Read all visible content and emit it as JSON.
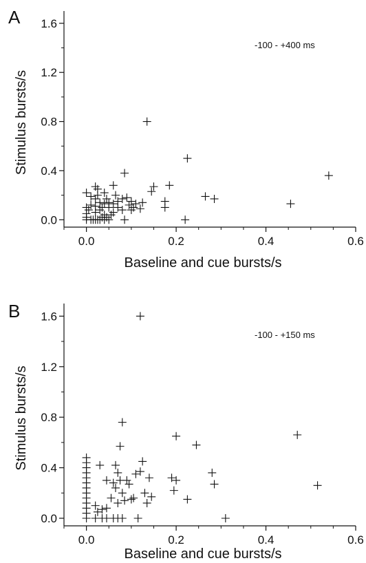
{
  "chart_data": [
    {
      "type": "scatter",
      "panel_label": "A",
      "annotation": "-100 - +400 ms",
      "xlabel": "Baseline and cue bursts/s",
      "ylabel": "Stimulus bursts/s",
      "xlim": [
        -0.05,
        0.6
      ],
      "ylim": [
        -0.06,
        1.7
      ],
      "x_ticks": [
        "0.0",
        "0.2",
        "0.4",
        "0.6"
      ],
      "y_ticks": [
        "0.0",
        "0.4",
        "0.8",
        "1.2",
        "1.6"
      ],
      "grid": false,
      "marker": "plus",
      "points": [
        {
          "x": 0.0,
          "y": 0.0
        },
        {
          "x": 0.0,
          "y": 0.02
        },
        {
          "x": 0.0,
          "y": 0.05
        },
        {
          "x": 0.0,
          "y": 0.1
        },
        {
          "x": 0.0,
          "y": 0.22
        },
        {
          "x": 0.005,
          "y": 0.08
        },
        {
          "x": 0.01,
          "y": 0.0
        },
        {
          "x": 0.01,
          "y": 0.12
        },
        {
          "x": 0.01,
          "y": 0.19
        },
        {
          "x": 0.015,
          "y": 0.0
        },
        {
          "x": 0.02,
          "y": 0.0
        },
        {
          "x": 0.02,
          "y": 0.06
        },
        {
          "x": 0.02,
          "y": 0.11
        },
        {
          "x": 0.02,
          "y": 0.17
        },
        {
          "x": 0.02,
          "y": 0.27
        },
        {
          "x": 0.025,
          "y": 0.0
        },
        {
          "x": 0.025,
          "y": 0.2
        },
        {
          "x": 0.025,
          "y": 0.25
        },
        {
          "x": 0.03,
          "y": 0.0
        },
        {
          "x": 0.03,
          "y": 0.08
        },
        {
          "x": 0.03,
          "y": 0.14
        },
        {
          "x": 0.035,
          "y": 0.02
        },
        {
          "x": 0.035,
          "y": 0.1
        },
        {
          "x": 0.04,
          "y": 0.0
        },
        {
          "x": 0.04,
          "y": 0.04
        },
        {
          "x": 0.04,
          "y": 0.13
        },
        {
          "x": 0.04,
          "y": 0.22
        },
        {
          "x": 0.045,
          "y": 0.02
        },
        {
          "x": 0.045,
          "y": 0.17
        },
        {
          "x": 0.05,
          "y": 0.0
        },
        {
          "x": 0.05,
          "y": 0.1
        },
        {
          "x": 0.05,
          "y": 0.14
        },
        {
          "x": 0.055,
          "y": 0.04
        },
        {
          "x": 0.06,
          "y": 0.06
        },
        {
          "x": 0.06,
          "y": 0.13
        },
        {
          "x": 0.06,
          "y": 0.28
        },
        {
          "x": 0.065,
          "y": 0.2
        },
        {
          "x": 0.07,
          "y": 0.1
        },
        {
          "x": 0.07,
          "y": 0.15
        },
        {
          "x": 0.08,
          "y": 0.08
        },
        {
          "x": 0.08,
          "y": 0.17
        },
        {
          "x": 0.085,
          "y": 0.0
        },
        {
          "x": 0.085,
          "y": 0.38
        },
        {
          "x": 0.09,
          "y": 0.18
        },
        {
          "x": 0.095,
          "y": 0.12
        },
        {
          "x": 0.1,
          "y": 0.08
        },
        {
          "x": 0.1,
          "y": 0.15
        },
        {
          "x": 0.105,
          "y": 0.1
        },
        {
          "x": 0.11,
          "y": 0.13
        },
        {
          "x": 0.12,
          "y": 0.09
        },
        {
          "x": 0.125,
          "y": 0.14
        },
        {
          "x": 0.135,
          "y": 0.8
        },
        {
          "x": 0.145,
          "y": 0.23
        },
        {
          "x": 0.15,
          "y": 0.27
        },
        {
          "x": 0.175,
          "y": 0.1
        },
        {
          "x": 0.175,
          "y": 0.15
        },
        {
          "x": 0.185,
          "y": 0.28
        },
        {
          "x": 0.22,
          "y": 0.0
        },
        {
          "x": 0.225,
          "y": 0.5
        },
        {
          "x": 0.265,
          "y": 0.19
        },
        {
          "x": 0.285,
          "y": 0.17
        },
        {
          "x": 0.455,
          "y": 0.13
        },
        {
          "x": 0.54,
          "y": 0.36
        }
      ]
    },
    {
      "type": "scatter",
      "panel_label": "B",
      "annotation": "-100 - +150 ms",
      "xlabel": "Baseline and cue bursts/s",
      "ylabel": "Stimulus bursts/s",
      "xlim": [
        -0.05,
        0.6
      ],
      "ylim": [
        -0.06,
        1.7
      ],
      "x_ticks": [
        "0.0",
        "0.2",
        "0.4",
        "0.6"
      ],
      "y_ticks": [
        "0.0",
        "0.4",
        "0.8",
        "1.2",
        "1.6"
      ],
      "grid": false,
      "marker": "plus",
      "points": [
        {
          "x": 0.0,
          "y": 0.0
        },
        {
          "x": 0.0,
          "y": 0.04
        },
        {
          "x": 0.0,
          "y": 0.08
        },
        {
          "x": 0.0,
          "y": 0.12
        },
        {
          "x": 0.0,
          "y": 0.16
        },
        {
          "x": 0.0,
          "y": 0.2
        },
        {
          "x": 0.0,
          "y": 0.24
        },
        {
          "x": 0.0,
          "y": 0.28
        },
        {
          "x": 0.0,
          "y": 0.32
        },
        {
          "x": 0.0,
          "y": 0.36
        },
        {
          "x": 0.0,
          "y": 0.4
        },
        {
          "x": 0.0,
          "y": 0.44
        },
        {
          "x": 0.0,
          "y": 0.48
        },
        {
          "x": 0.02,
          "y": 0.0
        },
        {
          "x": 0.02,
          "y": 0.1
        },
        {
          "x": 0.025,
          "y": 0.05
        },
        {
          "x": 0.03,
          "y": 0.42
        },
        {
          "x": 0.035,
          "y": 0.0
        },
        {
          "x": 0.035,
          "y": 0.07
        },
        {
          "x": 0.045,
          "y": 0.0
        },
        {
          "x": 0.045,
          "y": 0.08
        },
        {
          "x": 0.045,
          "y": 0.3
        },
        {
          "x": 0.055,
          "y": 0.16
        },
        {
          "x": 0.06,
          "y": 0.0
        },
        {
          "x": 0.06,
          "y": 0.28
        },
        {
          "x": 0.065,
          "y": 0.24
        },
        {
          "x": 0.065,
          "y": 0.42
        },
        {
          "x": 0.07,
          "y": 0.0
        },
        {
          "x": 0.07,
          "y": 0.12
        },
        {
          "x": 0.07,
          "y": 0.36
        },
        {
          "x": 0.075,
          "y": 0.57
        },
        {
          "x": 0.075,
          "y": 0.3
        },
        {
          "x": 0.08,
          "y": 0.0
        },
        {
          "x": 0.08,
          "y": 0.2
        },
        {
          "x": 0.08,
          "y": 0.76
        },
        {
          "x": 0.085,
          "y": 0.14
        },
        {
          "x": 0.09,
          "y": 0.3
        },
        {
          "x": 0.095,
          "y": 0.27
        },
        {
          "x": 0.1,
          "y": 0.15
        },
        {
          "x": 0.105,
          "y": 0.16
        },
        {
          "x": 0.11,
          "y": 0.35
        },
        {
          "x": 0.115,
          "y": 0.0
        },
        {
          "x": 0.12,
          "y": 0.37
        },
        {
          "x": 0.12,
          "y": 1.6
        },
        {
          "x": 0.125,
          "y": 0.45
        },
        {
          "x": 0.13,
          "y": 0.2
        },
        {
          "x": 0.135,
          "y": 0.12
        },
        {
          "x": 0.14,
          "y": 0.32
        },
        {
          "x": 0.145,
          "y": 0.17
        },
        {
          "x": 0.19,
          "y": 0.32
        },
        {
          "x": 0.195,
          "y": 0.22
        },
        {
          "x": 0.2,
          "y": 0.65
        },
        {
          "x": 0.2,
          "y": 0.3
        },
        {
          "x": 0.225,
          "y": 0.15
        },
        {
          "x": 0.245,
          "y": 0.58
        },
        {
          "x": 0.28,
          "y": 0.36
        },
        {
          "x": 0.285,
          "y": 0.27
        },
        {
          "x": 0.31,
          "y": 0.0
        },
        {
          "x": 0.47,
          "y": 0.66
        },
        {
          "x": 0.515,
          "y": 0.26
        }
      ]
    }
  ]
}
